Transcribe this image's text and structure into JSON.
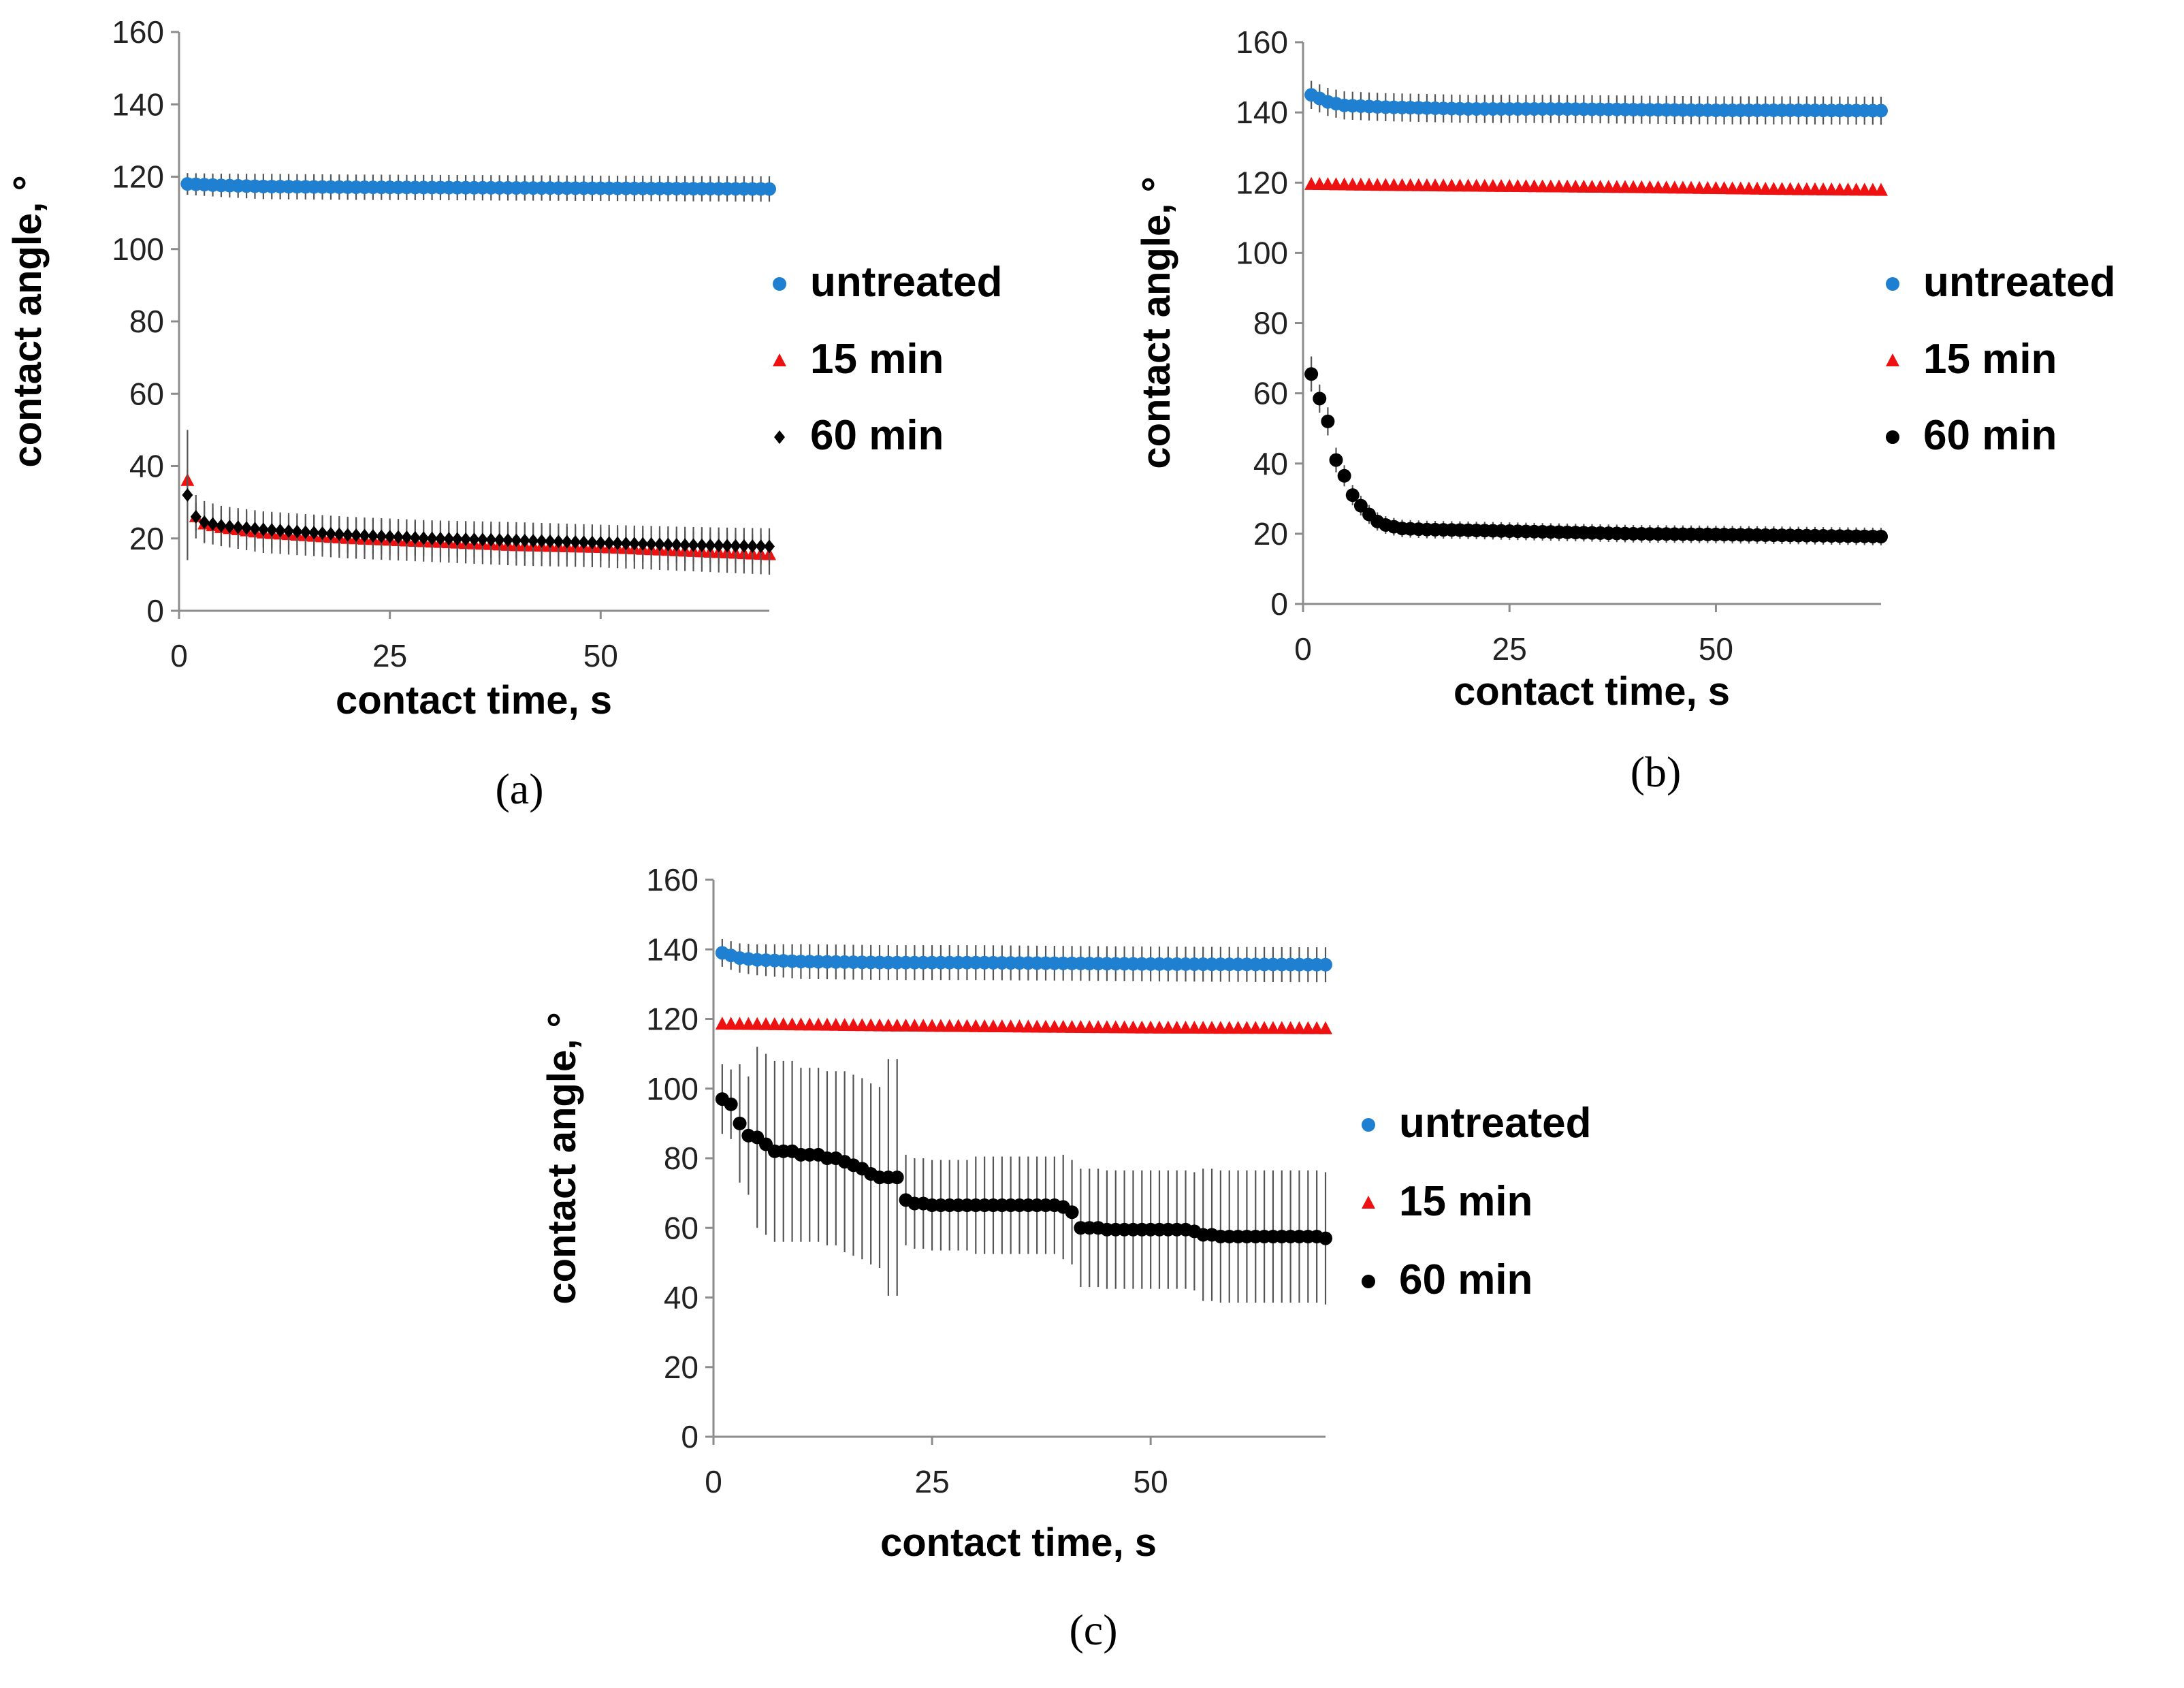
{
  "figure": {
    "panels": [
      "(a)",
      "(b)",
      "(c)"
    ]
  },
  "colors": {
    "untreated": "#1f7fd1",
    "min15": "#ee1111",
    "min60": "#000000",
    "errorbar": "#555555",
    "axis": "#8c8c8c"
  },
  "chart_data": [
    {
      "panel": "(a)",
      "type": "scatter",
      "xlabel": "contact time, s",
      "ylabel": "contact angle, °",
      "xlim": [
        0,
        70
      ],
      "ylim": [
        0,
        160
      ],
      "xticks": [
        0,
        25,
        50
      ],
      "yticks": [
        0,
        20,
        40,
        60,
        80,
        100,
        120,
        140,
        160
      ],
      "legend_position": "right",
      "series": [
        {
          "name": "untreated",
          "marker": "circle",
          "color": "#1f7fd1",
          "points": [
            [
              1,
              118
            ],
            [
              5,
              117.6
            ],
            [
              10,
              117.3
            ],
            [
              20,
              117.1
            ],
            [
              30,
              117
            ],
            [
              40,
              116.9
            ],
            [
              50,
              116.8
            ],
            [
              60,
              116.7
            ],
            [
              70,
              116.6
            ]
          ],
          "error": [
            [
              1,
              3
            ],
            [
              10,
              3.5
            ],
            [
              30,
              3.5
            ],
            [
              50,
              3.5
            ],
            [
              70,
              3.5
            ]
          ]
        },
        {
          "name": "15 min",
          "marker": "triangle",
          "color": "#ee1111",
          "points": [
            [
              1,
              36
            ],
            [
              2,
              26
            ],
            [
              3,
              24
            ],
            [
              5,
              23
            ],
            [
              10,
              21.5
            ],
            [
              20,
              20
            ],
            [
              30,
              19
            ],
            [
              40,
              18
            ],
            [
              50,
              17.5
            ],
            [
              60,
              16.5
            ],
            [
              70,
              15.5
            ]
          ],
          "error": [
            [
              1,
              3
            ],
            [
              3,
              5
            ],
            [
              10,
              5.5
            ],
            [
              30,
              5.5
            ],
            [
              50,
              5.5
            ],
            [
              70,
              5.5
            ]
          ]
        },
        {
          "name": "60 min",
          "marker": "diamond",
          "color": "#000000",
          "points": [
            [
              1,
              32
            ],
            [
              2,
              26
            ],
            [
              3,
              24.5
            ],
            [
              5,
              23.5
            ],
            [
              10,
              22.5
            ],
            [
              20,
              21
            ],
            [
              30,
              20
            ],
            [
              40,
              19.5
            ],
            [
              50,
              18.8
            ],
            [
              60,
              18.2
            ],
            [
              70,
              17.8
            ]
          ],
          "error": [
            [
              1,
              18
            ],
            [
              2,
              6
            ],
            [
              5,
              5.5
            ],
            [
              10,
              5
            ],
            [
              30,
              5
            ],
            [
              50,
              5
            ],
            [
              70,
              5
            ]
          ]
        }
      ]
    },
    {
      "panel": "(b)",
      "type": "scatter",
      "xlabel": "contact time, s",
      "ylabel": "contact angle, °",
      "xlim": [
        0,
        70
      ],
      "ylim": [
        0,
        160
      ],
      "xticks": [
        0,
        25,
        50
      ],
      "yticks": [
        0,
        20,
        40,
        60,
        80,
        100,
        120,
        140,
        160
      ],
      "legend_position": "right",
      "series": [
        {
          "name": "untreated",
          "marker": "circle",
          "color": "#1f7fd1",
          "points": [
            [
              1,
              145
            ],
            [
              2,
              144
            ],
            [
              3,
              143
            ],
            [
              5,
              142
            ],
            [
              10,
              141.5
            ],
            [
              20,
              141
            ],
            [
              30,
              141
            ],
            [
              40,
              140.8
            ],
            [
              50,
              140.6
            ],
            [
              60,
              140.6
            ],
            [
              70,
              140.5
            ]
          ],
          "error": [
            [
              1,
              4
            ],
            [
              5,
              4
            ],
            [
              20,
              4
            ],
            [
              50,
              4
            ],
            [
              70,
              4
            ]
          ]
        },
        {
          "name": "15 min",
          "marker": "triangle",
          "color": "#ee1111",
          "points": [
            [
              1,
              119.5
            ],
            [
              10,
              119.2
            ],
            [
              20,
              119
            ],
            [
              30,
              118.8
            ],
            [
              40,
              118.6
            ],
            [
              50,
              118.3
            ],
            [
              60,
              118
            ],
            [
              70,
              117.8
            ]
          ],
          "error": [
            [
              1,
              1.5
            ],
            [
              70,
              1.5
            ]
          ]
        },
        {
          "name": "60 min",
          "marker": "circle",
          "color": "#000000",
          "points": [
            [
              1,
              65.5
            ],
            [
              2,
              58.5
            ],
            [
              3,
              52
            ],
            [
              4,
              41
            ],
            [
              5,
              36.5
            ],
            [
              6,
              31
            ],
            [
              7,
              28
            ],
            [
              8,
              25.5
            ],
            [
              9,
              23.5
            ],
            [
              10,
              22.5
            ],
            [
              12,
              21.5
            ],
            [
              15,
              21.2
            ],
            [
              20,
              21
            ],
            [
              30,
              20.5
            ],
            [
              40,
              20
            ],
            [
              50,
              19.8
            ],
            [
              60,
              19.5
            ],
            [
              70,
              19.2
            ]
          ],
          "error": [
            [
              1,
              5
            ],
            [
              2,
              4
            ],
            [
              3,
              4
            ],
            [
              5,
              3
            ],
            [
              10,
              2.5
            ],
            [
              20,
              2.5
            ],
            [
              40,
              2.5
            ],
            [
              70,
              2.5
            ]
          ]
        }
      ]
    },
    {
      "panel": "(c)",
      "type": "scatter",
      "xlabel": "contact time, s",
      "ylabel": "contact angle, °",
      "xlim": [
        0,
        70
      ],
      "ylim": [
        0,
        160
      ],
      "xticks": [
        0,
        25,
        50
      ],
      "yticks": [
        0,
        20,
        40,
        60,
        80,
        100,
        120,
        140,
        160
      ],
      "legend_position": "right",
      "series": [
        {
          "name": "untreated",
          "marker": "circle",
          "color": "#1f7fd1",
          "points": [
            [
              1,
              139
            ],
            [
              3,
              137.5
            ],
            [
              5,
              137
            ],
            [
              10,
              136.5
            ],
            [
              20,
              136.2
            ],
            [
              30,
              136.2
            ],
            [
              40,
              136
            ],
            [
              50,
              135.8
            ],
            [
              60,
              135.7
            ],
            [
              70,
              135.6
            ]
          ],
          "error": [
            [
              1,
              4
            ],
            [
              10,
              5
            ],
            [
              40,
              5
            ],
            [
              70,
              5
            ]
          ]
        },
        {
          "name": "15 min",
          "marker": "triangle",
          "color": "#ee1111",
          "points": [
            [
              1,
              118.5
            ],
            [
              10,
              118.3
            ],
            [
              20,
              118
            ],
            [
              30,
              117.8
            ],
            [
              40,
              117.6
            ],
            [
              50,
              117.4
            ],
            [
              60,
              117.3
            ],
            [
              70,
              117.2
            ]
          ],
          "error": [
            [
              1,
              1.5
            ],
            [
              70,
              1.5
            ]
          ]
        },
        {
          "name": "60 min",
          "marker": "circle",
          "color": "#000000",
          "points": [
            [
              1,
              97
            ],
            [
              2,
              95.5
            ],
            [
              3,
              90
            ],
            [
              4,
              86.5
            ],
            [
              5,
              86
            ],
            [
              6,
              84
            ],
            [
              7,
              82
            ],
            [
              10,
              81
            ],
            [
              13,
              80
            ],
            [
              15,
              79
            ],
            [
              16,
              78
            ],
            [
              17,
              77
            ],
            [
              18,
              75.5
            ],
            [
              19,
              74.5
            ],
            [
              20,
              74.5
            ],
            [
              21.5,
              68
            ],
            [
              23,
              67
            ],
            [
              25,
              66.5
            ],
            [
              30,
              66.5
            ],
            [
              35,
              66.5
            ],
            [
              38,
              66.5
            ],
            [
              39.5,
              66
            ],
            [
              40.5,
              64.5
            ],
            [
              41.5,
              62.5
            ],
            [
              42,
              60
            ],
            [
              45,
              59.5
            ],
            [
              50,
              59.5
            ],
            [
              55,
              59
            ],
            [
              56,
              58
            ],
            [
              58,
              57.5
            ],
            [
              65,
              57.5
            ],
            [
              70,
              57
            ]
          ],
          "error": [
            [
              1,
              10
            ],
            [
              3,
              17
            ],
            [
              5,
              26
            ],
            [
              10,
              25
            ],
            [
              15,
              26
            ],
            [
              20,
              34
            ],
            [
              21.5,
              13
            ],
            [
              30,
              14
            ],
            [
              40,
              15
            ],
            [
              42,
              17
            ],
            [
              55,
              17
            ],
            [
              56,
              19
            ],
            [
              70,
              19
            ]
          ]
        }
      ]
    }
  ]
}
